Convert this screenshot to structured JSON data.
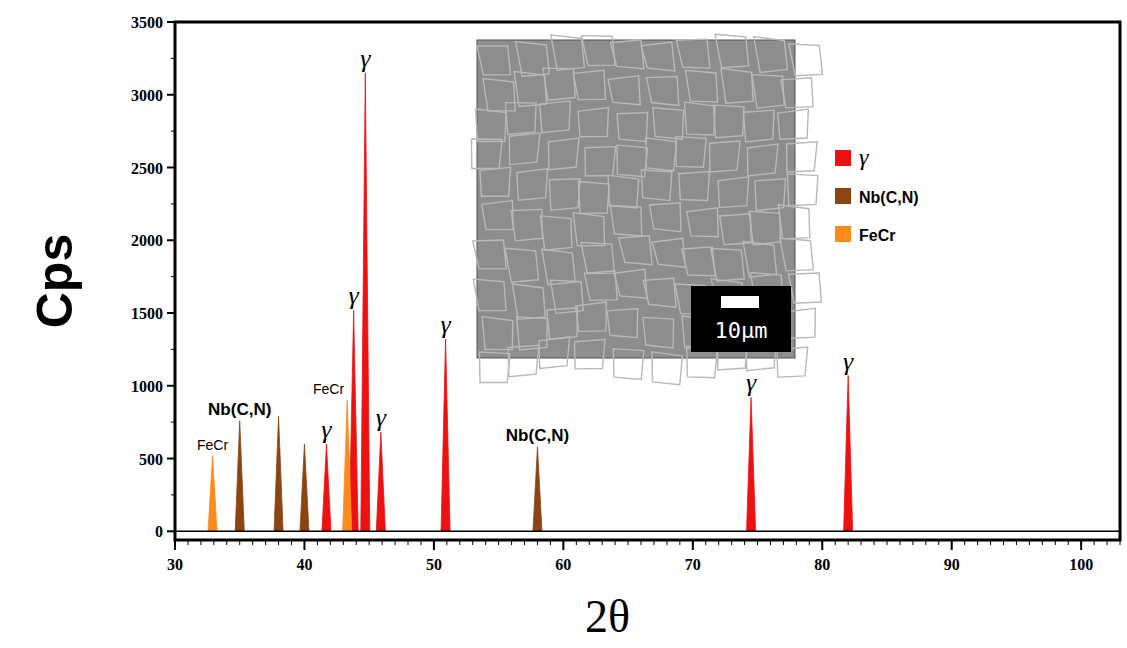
{
  "chart_data": {
    "type": "spectrum",
    "x_label": "2θ",
    "y_label": "Cps",
    "xlim": [
      30,
      103
    ],
    "ylim": [
      -60,
      3500
    ],
    "xticks": [
      30,
      40,
      50,
      60,
      70,
      80,
      90,
      100
    ],
    "yticks": [
      0,
      500,
      1000,
      1500,
      2000,
      2500,
      3000,
      3500
    ],
    "legend": "right",
    "series": [
      {
        "name": "γ",
        "color": "#ee1111",
        "x": [
          41.7,
          43.8,
          44.7,
          45.9,
          50.9,
          74.5,
          82.0
        ],
        "values": [
          600,
          1520,
          3150,
          680,
          1320,
          920,
          1070
        ],
        "annotations": [
          "γ",
          "γ",
          "γ",
          "γ",
          "γ",
          "γ",
          "γ"
        ]
      },
      {
        "name": "Nb(C,N)",
        "color": "#8b4513",
        "x": [
          35.0,
          38.0,
          40.0,
          58.0
        ],
        "values": [
          760,
          790,
          600,
          580
        ],
        "annotations": [
          "Nb(C,N)",
          null,
          null,
          "Nb(C,N)"
        ]
      },
      {
        "name": "FeCr",
        "color": "#ff8c1a",
        "x": [
          32.9,
          43.3
        ],
        "values": [
          520,
          900
        ],
        "annotations": [
          "FeCr",
          "FeCr"
        ]
      }
    ],
    "inset": {
      "scale_bar": "10μm"
    }
  }
}
